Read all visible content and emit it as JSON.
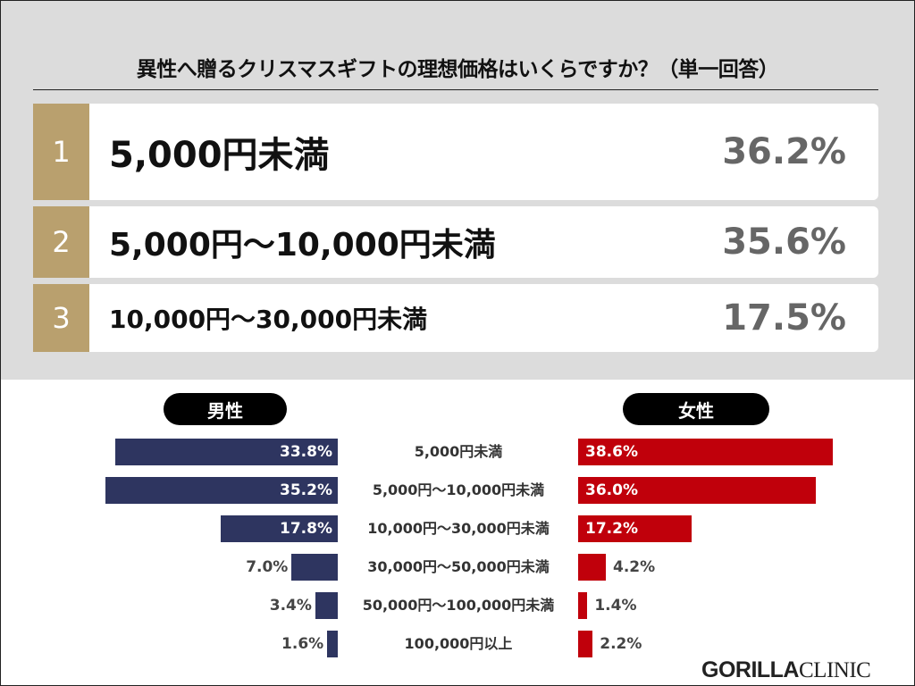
{
  "title": "異性へ贈るクリスマスギフトの理想価格はいくらですか？（単一回答）",
  "ranking": [
    {
      "rank": "1",
      "label": "5,000円未満",
      "value": "36.2%"
    },
    {
      "rank": "2",
      "label": "5,000円〜10,000円未満",
      "value": "35.6%"
    },
    {
      "rank": "3",
      "label": "10,000円〜30,000円未満",
      "value": "17.5%"
    }
  ],
  "logo": {
    "bold": "GORILLA",
    "light": "CLINIC"
  },
  "chart_data": {
    "type": "bar",
    "orientation": "horizontal-butterfly",
    "categories": [
      "5,000円未満",
      "5,000円〜10,000円未満",
      "10,000円〜30,000円未満",
      "30,000円〜50,000円未満",
      "50,000円〜100,000円未満",
      "100,000円以上"
    ],
    "series": [
      {
        "name": "男性",
        "values": [
          33.8,
          35.2,
          17.8,
          7.0,
          3.4,
          1.6
        ],
        "labels": [
          "33.8%",
          "35.2%",
          "17.8%",
          "7.0%",
          "3.4%",
          "1.6%"
        ],
        "color": "#2e3560"
      },
      {
        "name": "女性",
        "values": [
          38.6,
          36.0,
          17.2,
          4.2,
          1.4,
          2.2
        ],
        "labels": [
          "38.6%",
          "36.0%",
          "17.2%",
          "4.2%",
          "1.4%",
          "2.2%"
        ],
        "color": "#c0000b"
      }
    ],
    "colors": {
      "rank_box": "#b9a06e",
      "background_top": "#dcdcdc"
    }
  }
}
